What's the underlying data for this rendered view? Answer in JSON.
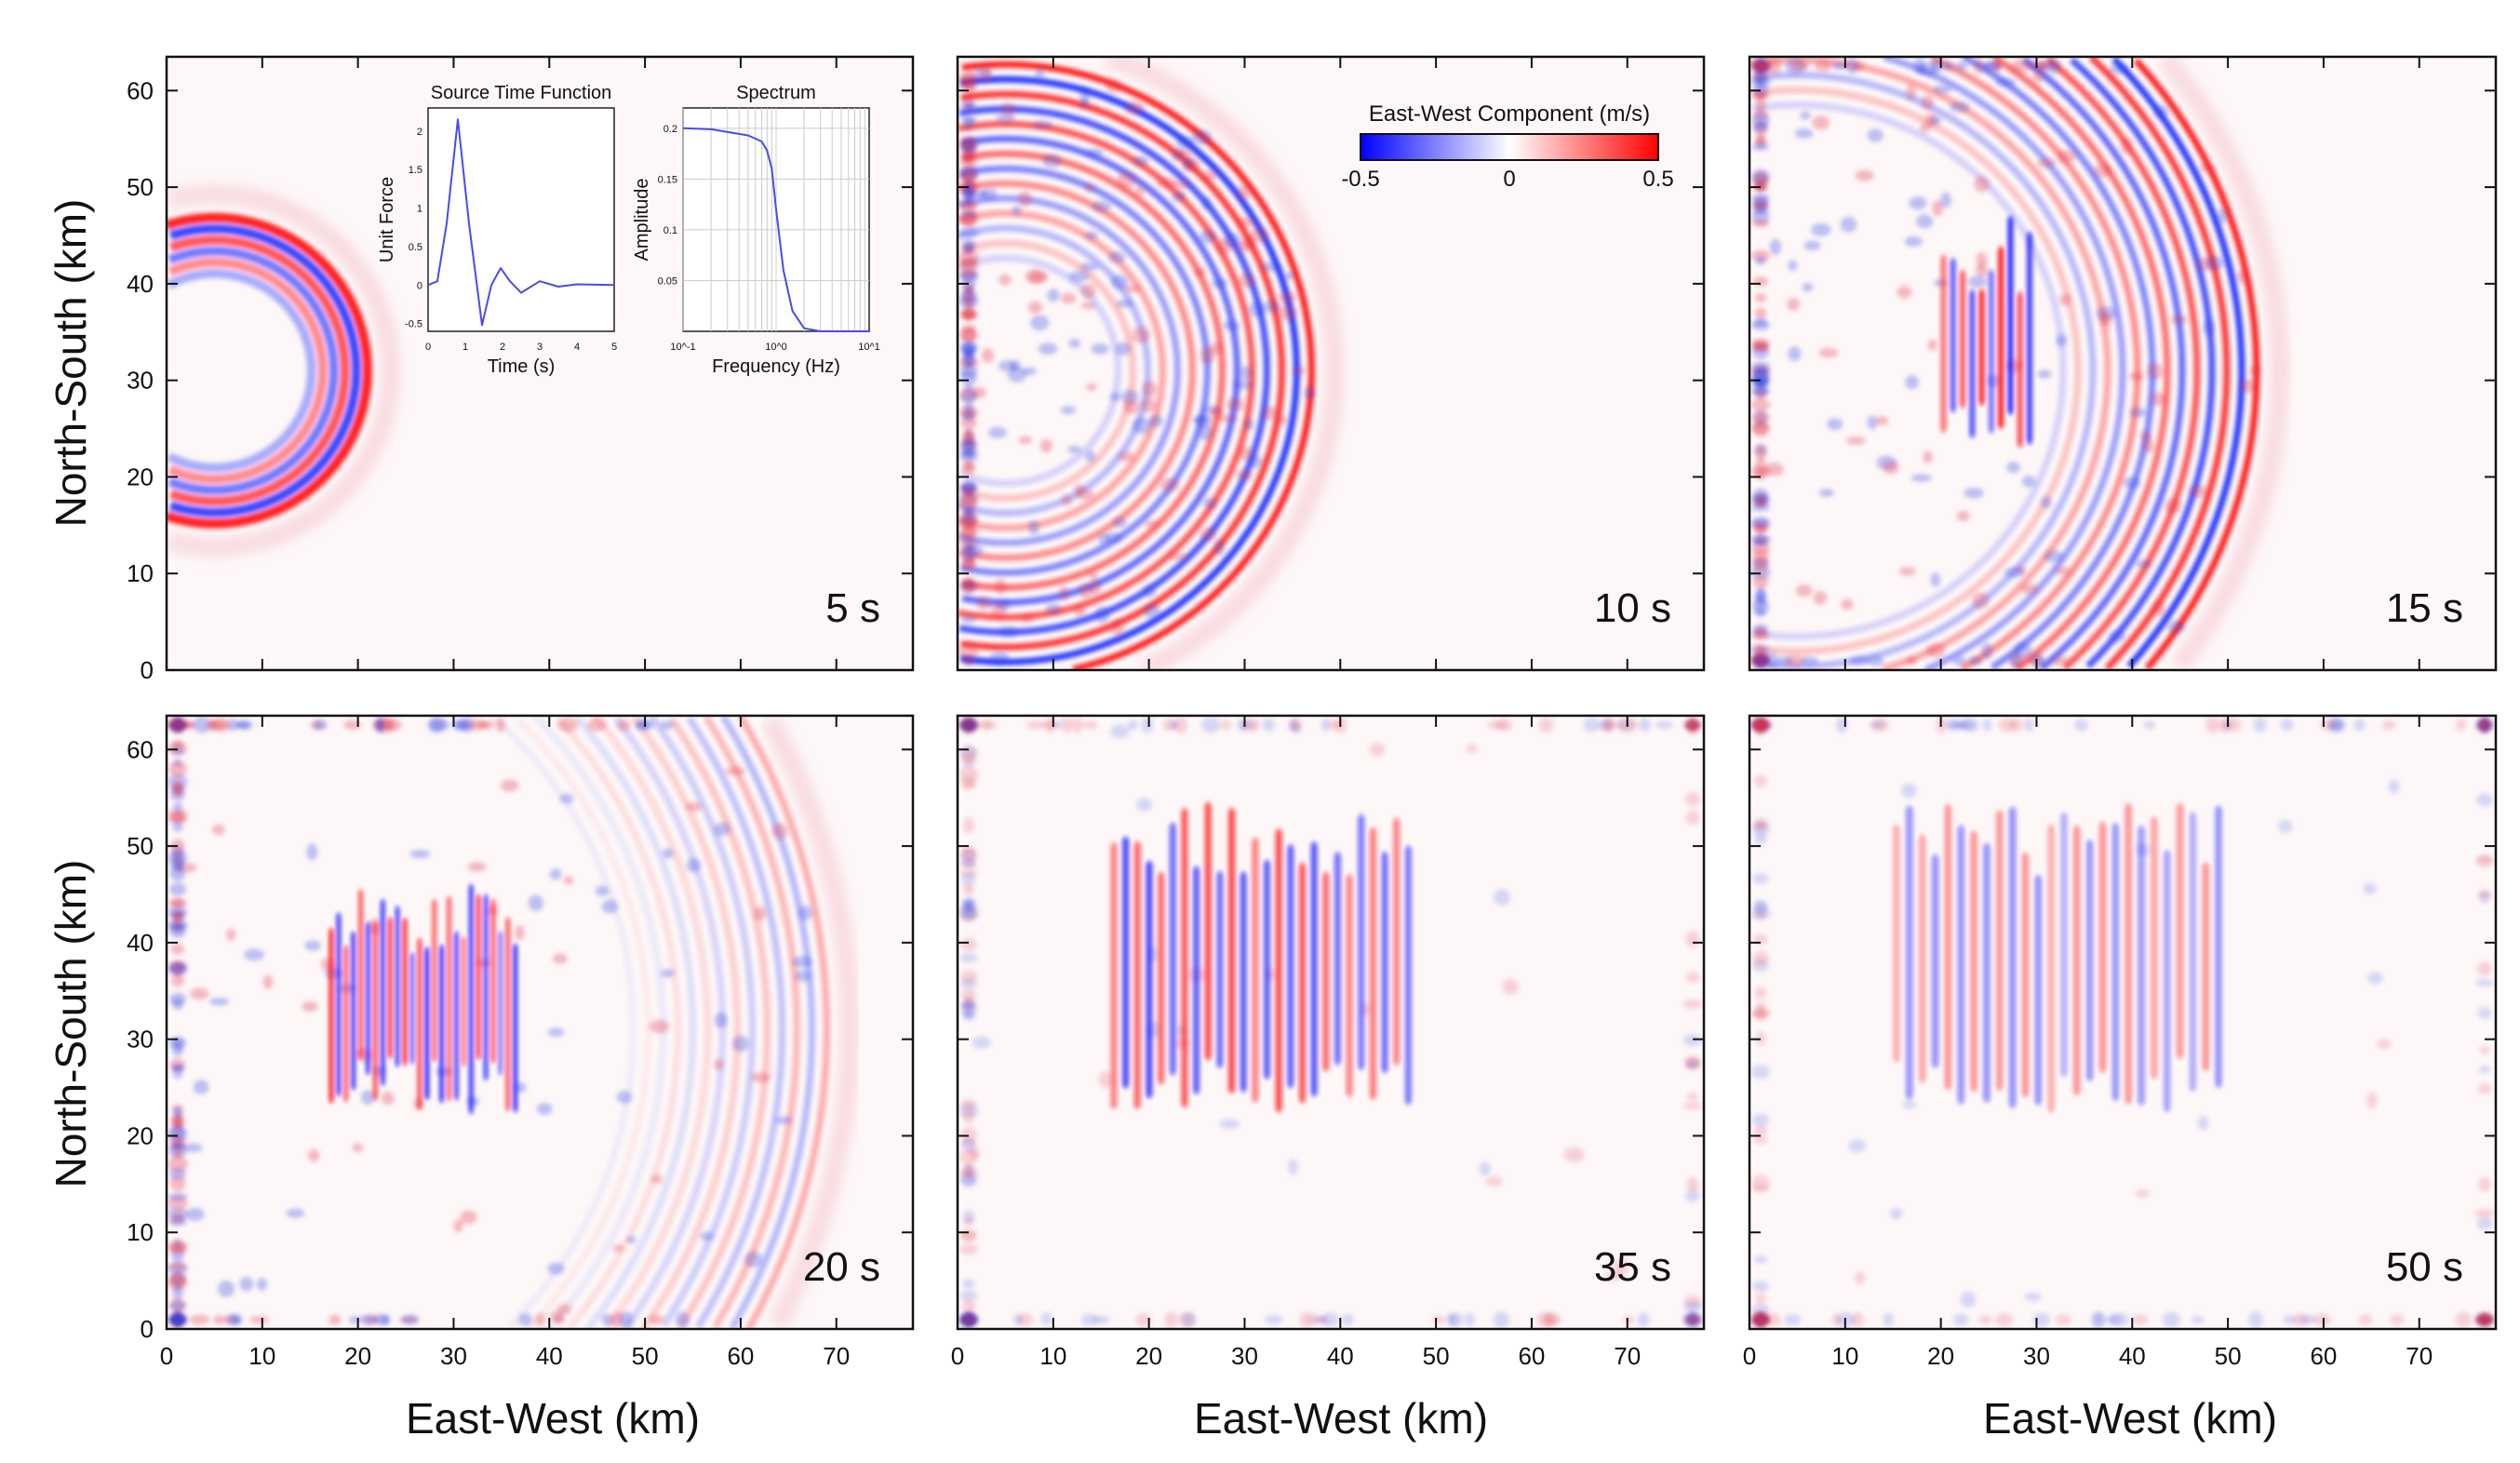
{
  "chart_data": {
    "type": "heatmap",
    "xlabel": "East-West (km)",
    "ylabel": "North-South (km)",
    "xlim": [
      0,
      78
    ],
    "ylim": [
      0,
      63.5
    ],
    "xticks": [
      0,
      10,
      20,
      30,
      40,
      50,
      60,
      70
    ],
    "yticks": [
      0,
      10,
      20,
      30,
      40,
      50,
      60
    ],
    "colorbar": {
      "title": "East-West Component (m/s)",
      "range": [
        -0.5,
        0.5
      ],
      "tick_labels": [
        "-0.5",
        "0",
        "0.5"
      ],
      "colors": {
        "low": "#0000ff",
        "mid": "#ffffff",
        "high": "#ff0000"
      }
    },
    "panels": [
      {
        "time_label": "5 s",
        "time": 5
      },
      {
        "time_label": "10 s",
        "time": 10
      },
      {
        "time_label": "15 s",
        "time": 15
      },
      {
        "time_label": "20 s",
        "time": 20
      },
      {
        "time_label": "35 s",
        "time": 35
      },
      {
        "time_label": "50 s",
        "time": 50
      }
    ],
    "insets": [
      {
        "type": "line",
        "title": "Source Time Function",
        "xlabel": "Time (s)",
        "ylabel": "Unit Force",
        "xlim": [
          0,
          5
        ],
        "ylim": [
          -0.6,
          2.3
        ],
        "xticks": [
          "0",
          "1",
          "2",
          "3",
          "4",
          "5"
        ],
        "yticks": [
          "-0.5",
          "0",
          "0.5",
          "1",
          "1.5",
          "2"
        ],
        "x": [
          0,
          0.25,
          0.5,
          0.8,
          1.1,
          1.45,
          1.7,
          1.95,
          2.2,
          2.5,
          3.0,
          3.5,
          4.0,
          5.0
        ],
        "y": [
          0,
          0.05,
          0.8,
          2.15,
          0.8,
          -0.52,
          0.0,
          0.22,
          0.05,
          -0.1,
          0.05,
          -0.02,
          0.01,
          0
        ],
        "color": "#4a4af0"
      },
      {
        "type": "line",
        "title": "Spectrum",
        "xlabel": "Frequency (Hz)",
        "ylabel": "Amplitude",
        "xscale": "log",
        "xlim": [
          0.1,
          10
        ],
        "ylim": [
          0,
          0.22
        ],
        "grid": true,
        "xticks": [
          "10^-1",
          "10^0",
          "10^1"
        ],
        "yticks": [
          "0.05",
          "0.1",
          "0.15",
          "0.2"
        ],
        "x": [
          0.1,
          0.2,
          0.5,
          0.7,
          0.8,
          0.9,
          1.0,
          1.2,
          1.5,
          2.0,
          3.0,
          10
        ],
        "y": [
          0.2,
          0.199,
          0.193,
          0.187,
          0.178,
          0.16,
          0.12,
          0.06,
          0.02,
          0.003,
          0,
          0
        ],
        "color": "#4a4af0"
      }
    ]
  }
}
